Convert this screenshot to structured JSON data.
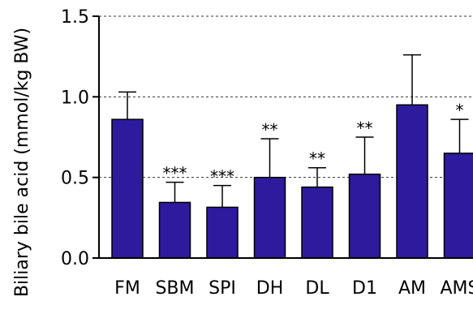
{
  "chart_data": {
    "type": "bar",
    "title": "",
    "xlabel": "",
    "ylabel": "Biliary bile acid (mmol/kg BW)",
    "ylim": [
      0,
      1.5
    ],
    "yticks": [
      0.0,
      0.5,
      1.0,
      1.5
    ],
    "ytick_labels": [
      "0.0",
      "0.5",
      "1.0",
      "1.5"
    ],
    "grid": "horizontal dashed at 0.5, 1.0, 1.5",
    "bar_color": "#2e1a9c",
    "categories": [
      "FM",
      "SBM",
      "SPI",
      "DH",
      "DL",
      "D1",
      "AM",
      "AMS"
    ],
    "values": [
      0.86,
      0.345,
      0.315,
      0.5,
      0.44,
      0.52,
      0.95,
      0.65
    ],
    "errors": [
      0.17,
      0.125,
      0.135,
      0.24,
      0.12,
      0.23,
      0.31,
      0.21
    ],
    "significance": [
      "",
      "***",
      "***",
      "**",
      "**",
      "**",
      "",
      "*"
    ]
  }
}
